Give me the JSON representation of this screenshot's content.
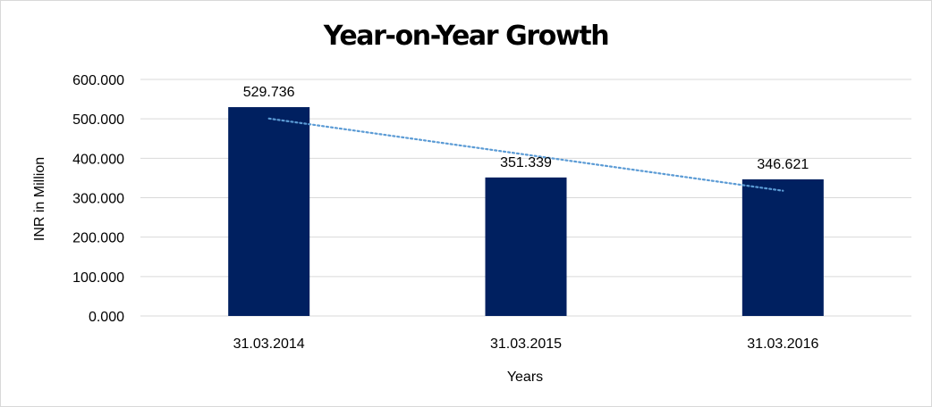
{
  "chart_data": {
    "type": "bar",
    "title": "Year-on-Year Growth",
    "xlabel": "Years",
    "ylabel": "INR in Million",
    "categories": [
      "31.03.2014",
      "31.03.2015",
      "31.03.2016"
    ],
    "values": [
      529.736,
      351.339,
      346.621
    ],
    "data_labels": [
      "529.736",
      "351.339",
      "346.621"
    ],
    "ylim": [
      0,
      600
    ],
    "yticks": [
      0,
      100,
      200,
      300,
      400,
      500,
      600
    ],
    "ytick_labels": [
      "0.000",
      "100.000",
      "200.000",
      "300.000",
      "400.000",
      "500.000",
      "600.000"
    ],
    "grid": true,
    "legend": "none",
    "bar_color": "#002060",
    "gridline_color": "#d9d9d9",
    "trendline": {
      "type": "linear",
      "style": "dotted",
      "color": "#5b9bd5"
    }
  }
}
